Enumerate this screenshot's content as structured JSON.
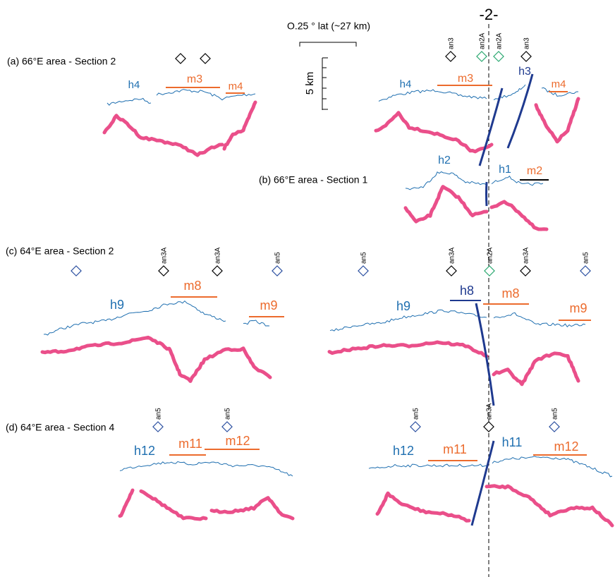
{
  "header": {
    "title": "-2-"
  },
  "scale": {
    "horizontal": "O.25 ° lat (~27 km)",
    "vertical": "5 km"
  },
  "sections": [
    {
      "title": "(a) 66°E area - Section 2",
      "left_labels": [
        "h4",
        "m3",
        "m4"
      ],
      "right_markers": [
        "an3",
        "an2A",
        "an2A",
        "an3"
      ],
      "right_labels": [
        "h4",
        "m3",
        "h3",
        "m4"
      ]
    },
    {
      "title": "(b) 66°E area - Section 1",
      "right_labels": [
        "h2",
        "h1",
        "m2"
      ]
    },
    {
      "title": "(c) 64°E area - Section 2",
      "left_markers": [
        "an3A",
        "an3A",
        "an5"
      ],
      "left_labels": [
        "h9",
        "m8",
        "m9"
      ],
      "right_markers": [
        "an5",
        "an3A",
        "an2A",
        "an3A",
        "an5"
      ],
      "right_labels": [
        "h8",
        "m8",
        "h9",
        "m9"
      ]
    },
    {
      "title": "(d) 64°E area - Section 4",
      "left_markers": [
        "an5",
        "an5"
      ],
      "left_labels": [
        "h12",
        "m11",
        "m12"
      ],
      "right_markers": [
        "an5",
        "an3A",
        "an5"
      ],
      "right_labels": [
        "h12",
        "m11",
        "h11",
        "m12"
      ]
    }
  ]
}
